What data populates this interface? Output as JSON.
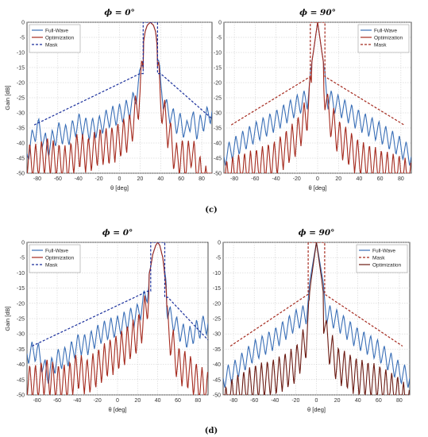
{
  "panel_labels": [
    "(c)",
    "(d)"
  ],
  "chart_data": [
    {
      "type": "line",
      "title": "ϕ = 0°",
      "xlabel": "θ [deg]",
      "ylabel": "Gain [dB]",
      "xlim": [
        -90,
        90
      ],
      "ylim": [
        -50,
        0
      ],
      "xticks": [
        -80,
        -60,
        -40,
        -20,
        0,
        20,
        40,
        60,
        80
      ],
      "yticks": [
        0,
        -5,
        -10,
        -15,
        -20,
        -25,
        -30,
        -35,
        -40,
        -45,
        -50
      ],
      "grid": true,
      "legend_position": "top-left",
      "steer": 30,
      "beamwidth": 7,
      "series": [
        {
          "name": "Full-Wave",
          "color": "#3a6fb7",
          "style": "solid",
          "x": [
            -90,
            -80,
            -70,
            -60,
            -50,
            -40,
            -30,
            -20,
            -10,
            0,
            10,
            15,
            20,
            22,
            25,
            27,
            30,
            33,
            35,
            38,
            40,
            45,
            50,
            55,
            60,
            65,
            70,
            75,
            80,
            85,
            90
          ],
          "y": [
            -40,
            -31,
            -38,
            -33,
            -34,
            -30,
            -32,
            -31,
            -28,
            -27,
            -25,
            -22,
            -15,
            -9,
            -3,
            -1,
            0,
            -1,
            -3,
            -10,
            -18,
            -25,
            -27,
            -30,
            -30,
            -33,
            -28,
            -32,
            -30,
            -28,
            -26
          ]
        },
        {
          "name": "Optimization",
          "color": "#a52a1e",
          "style": "solid",
          "x": [
            -90,
            -80,
            -70,
            -60,
            -50,
            -40,
            -30,
            -20,
            -10,
            0,
            10,
            15,
            20,
            22,
            25,
            27,
            30,
            33,
            35,
            38,
            40,
            45,
            50,
            55,
            60,
            65,
            70,
            75,
            80,
            85,
            90
          ],
          "y": [
            -40,
            -40,
            -38,
            -40,
            -41,
            -36,
            -38,
            -35,
            -35,
            -33,
            -30,
            -25,
            -18,
            -10,
            -3,
            -1,
            0,
            -1,
            -3,
            -12,
            -20,
            -27,
            -33,
            -40,
            -38,
            -41,
            -36,
            -42,
            -45,
            -48,
            -50
          ]
        },
        {
          "name": "Mask",
          "color": "#1a2f9c",
          "style": "dash",
          "x": [
            -90,
            -83,
            20,
            23,
            23,
            37,
            37,
            40,
            90
          ],
          "y": [
            null,
            -34,
            -17,
            -17,
            0,
            0,
            -17,
            -17,
            -32
          ]
        }
      ]
    },
    {
      "type": "line",
      "title": "ϕ = 90°",
      "xlabel": "θ [deg]",
      "ylabel": "",
      "xlim": [
        -90,
        90
      ],
      "ylim": [
        -50,
        0
      ],
      "xticks": [
        -80,
        -60,
        -40,
        -20,
        0,
        20,
        40,
        60,
        80
      ],
      "yticks": [
        0,
        -5,
        -10,
        -15,
        -20,
        -25,
        -30,
        -35,
        -40,
        -45,
        -50
      ],
      "grid": true,
      "legend_position": "top-right",
      "steer": 0,
      "beamwidth": 6,
      "series": [
        {
          "name": "Full-Wave",
          "color": "#3a6fb7",
          "style": "solid",
          "x": [
            -90,
            -80,
            -60,
            -40,
            -20,
            -10,
            -5,
            0,
            5,
            10,
            20,
            40,
            60,
            80,
            90
          ],
          "y": [
            -41,
            -38,
            -33,
            -29,
            -24,
            -22,
            -12,
            0,
            -12,
            -22,
            -24,
            -29,
            -33,
            -38,
            -41
          ]
        },
        {
          "name": "Optimization",
          "color": "#a52a1e",
          "style": "solid",
          "x": [
            -90,
            -80,
            -60,
            -40,
            -20,
            -10,
            -5,
            0,
            5,
            10,
            20,
            40,
            60,
            80,
            90
          ],
          "y": [
            -46,
            -44,
            -42,
            -39,
            -32,
            -24,
            -12,
            0,
            -12,
            -24,
            -32,
            -39,
            -42,
            -44,
            -46
          ]
        },
        {
          "name": "Mask",
          "color": "#a52a1e",
          "style": "dash",
          "x": [
            -83,
            -7,
            -7,
            7,
            7,
            83
          ],
          "y": [
            -34,
            -18,
            0,
            0,
            -18,
            -34
          ]
        }
      ]
    },
    {
      "type": "line",
      "title": "ϕ = 0°",
      "xlabel": "θ [deg]",
      "ylabel": "Gain [dB]",
      "xlim": [
        -90,
        90
      ],
      "ylim": [
        -50,
        0
      ],
      "xticks": [
        -80,
        -60,
        -40,
        -20,
        0,
        20,
        40,
        60,
        80
      ],
      "yticks": [
        0,
        -5,
        -10,
        -15,
        -20,
        -25,
        -30,
        -35,
        -40,
        -45,
        -50
      ],
      "grid": true,
      "legend_position": "top-left",
      "steer": 40,
      "beamwidth": 9,
      "series": [
        {
          "name": "Full-Wave",
          "color": "#3a6fb7",
          "style": "solid",
          "x": [
            -90,
            -80,
            -70,
            -60,
            -50,
            -40,
            -30,
            -20,
            -10,
            0,
            10,
            20,
            25,
            30,
            33,
            35,
            38,
            40,
            42,
            45,
            48,
            50,
            55,
            60,
            70,
            80,
            90
          ],
          "y": [
            -33,
            -32,
            -40,
            -35,
            -34,
            -30,
            -30,
            -27,
            -25,
            -24,
            -22,
            -20,
            -17,
            -12,
            -8,
            -4,
            -1,
            0,
            -1,
            -5,
            -12,
            -20,
            -22,
            -25,
            -28,
            -25,
            -23
          ]
        },
        {
          "name": "Optimization",
          "color": "#a52a1e",
          "style": "solid",
          "x": [
            -90,
            -80,
            -70,
            -60,
            -50,
            -40,
            -30,
            -20,
            -10,
            0,
            10,
            20,
            25,
            30,
            33,
            35,
            38,
            40,
            42,
            45,
            48,
            50,
            55,
            60,
            70,
            80,
            90
          ],
          "y": [
            -40,
            -40,
            -38,
            -40,
            -40,
            -36,
            -38,
            -35,
            -32,
            -30,
            -27,
            -24,
            -20,
            -13,
            -8,
            -4,
            -1,
            0,
            -1,
            -5,
            -14,
            -22,
            -28,
            -34,
            -36,
            -40,
            -42
          ]
        },
        {
          "name": "Mask",
          "color": "#1a2f9c",
          "style": "dash",
          "x": [
            -90,
            -85,
            30,
            33,
            33,
            47,
            47,
            50,
            90
          ],
          "y": [
            null,
            -34,
            -16,
            -16,
            0,
            0,
            -18,
            -18,
            -32
          ]
        }
      ]
    },
    {
      "type": "line",
      "title": "ϕ = 90°",
      "xlabel": "θ [deg]",
      "ylabel": "",
      "xlim": [
        -90,
        90
      ],
      "ylim": [
        -50,
        0
      ],
      "xticks": [
        -80,
        -60,
        -40,
        -20,
        0,
        20,
        40,
        60,
        80
      ],
      "yticks": [
        0,
        -5,
        -10,
        -15,
        -20,
        -25,
        -30,
        -35,
        -40,
        -45,
        -50
      ],
      "grid": true,
      "legend_position": "top-right",
      "steer": 0,
      "beamwidth": 7,
      "series": [
        {
          "name": "Full-Wave",
          "color": "#3a6fb7",
          "style": "solid",
          "x": [
            -90,
            -80,
            -60,
            -40,
            -20,
            -10,
            -5,
            0,
            5,
            10,
            20,
            40,
            60,
            80,
            90
          ],
          "y": [
            -41,
            -39,
            -32,
            -28,
            -22,
            -20,
            -10,
            0,
            -10,
            -20,
            -22,
            -28,
            -32,
            -39,
            -41
          ]
        },
        {
          "name": "Mask",
          "color": "#a52a1e",
          "style": "dash",
          "x": [
            -83,
            -8,
            -8,
            8,
            8,
            83
          ],
          "y": [
            -34,
            -17,
            0,
            0,
            -17,
            -34
          ]
        },
        {
          "name": "Optimization",
          "color": "#6b1a12",
          "style": "solid",
          "x": [
            -90,
            -80,
            -60,
            -40,
            -20,
            -10,
            -5,
            0,
            5,
            10,
            20,
            40,
            60,
            80,
            90
          ],
          "y": [
            -48,
            -44,
            -40,
            -38,
            -34,
            -26,
            -12,
            0,
            -12,
            -26,
            -34,
            -38,
            -40,
            -44,
            -48
          ]
        }
      ]
    }
  ]
}
